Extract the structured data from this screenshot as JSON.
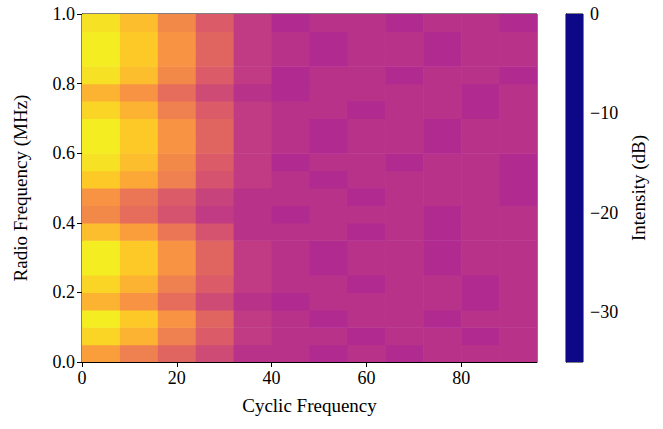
{
  "chart_data": {
    "type": "heatmap",
    "x_label": "Cyclic Frequency",
    "y_label": "Radio Frequency (MHz)",
    "xlim": [
      0,
      96
    ],
    "xticks": [
      0,
      20,
      40,
      60,
      80
    ],
    "ylim": [
      0,
      1
    ],
    "yticks": [
      {
        "value": 0,
        "label": "0.0"
      },
      0.2,
      0.4,
      0.6,
      0.8,
      {
        "value": 1,
        "label": "1.0"
      }
    ],
    "x_edges": [
      0,
      8,
      16,
      24,
      32,
      40,
      48,
      56,
      64,
      72,
      80,
      88,
      96
    ],
    "y_edges": [
      0,
      0.05,
      0.1,
      0.15,
      0.2,
      0.25,
      0.3,
      0.35,
      0.4,
      0.45,
      0.5,
      0.55,
      0.6,
      0.65,
      0.7,
      0.75,
      0.8,
      0.85,
      0.9,
      0.95,
      1
    ],
    "values": [
      [
        -8,
        -11,
        -14,
        -17,
        -20,
        -20,
        -21,
        -20,
        -21,
        -20,
        -20,
        -20
      ],
      [
        -3,
        -6,
        -11,
        -15,
        -19,
        -20,
        -20,
        -21,
        -20,
        -20,
        -21,
        -20
      ],
      [
        -1,
        -4,
        -9,
        -14,
        -19,
        -20,
        -21,
        -20,
        -20,
        -21,
        -20,
        -20
      ],
      [
        -6,
        -9,
        -13,
        -17,
        -20,
        -21,
        -20,
        -20,
        -20,
        -20,
        -21,
        -20
      ],
      [
        -3,
        -6,
        -11,
        -15,
        -19,
        -20,
        -20,
        -21,
        -20,
        -20,
        -21,
        -20
      ],
      [
        -1,
        -4,
        -9,
        -14,
        -19,
        -20,
        -21,
        -20,
        -20,
        -21,
        -20,
        -20
      ],
      [
        -1,
        -4,
        -9,
        -14,
        -19,
        -20,
        -21,
        -20,
        -20,
        -21,
        -20,
        -20
      ],
      [
        -5,
        -8,
        -12,
        -16,
        -20,
        -20,
        -20,
        -21,
        -20,
        -21,
        -20,
        -20
      ],
      [
        -10,
        -13,
        -16,
        -19,
        -20,
        -21,
        -20,
        -20,
        -20,
        -21,
        -20,
        -20
      ],
      [
        -9,
        -12,
        -15,
        -18,
        -20,
        -20,
        -20,
        -21,
        -20,
        -20,
        -20,
        -21
      ],
      [
        -4,
        -7,
        -11,
        -16,
        -19,
        -20,
        -21,
        -20,
        -20,
        -20,
        -20,
        -21
      ],
      [
        -2,
        -5,
        -10,
        -15,
        -19,
        -21,
        -20,
        -20,
        -21,
        -20,
        -20,
        -21
      ],
      [
        -1,
        -4,
        -9,
        -14,
        -19,
        -20,
        -21,
        -20,
        -20,
        -21,
        -20,
        -20
      ],
      [
        -1,
        -4,
        -9,
        -14,
        -19,
        -20,
        -21,
        -20,
        -20,
        -21,
        -20,
        -20
      ],
      [
        -3,
        -6,
        -11,
        -15,
        -19,
        -20,
        -20,
        -21,
        -20,
        -20,
        -21,
        -20
      ],
      [
        -6,
        -9,
        -13,
        -17,
        -20,
        -21,
        -20,
        -20,
        -20,
        -20,
        -21,
        -20
      ],
      [
        -2,
        -5,
        -10,
        -15,
        -19,
        -21,
        -20,
        -20,
        -21,
        -20,
        -20,
        -21
      ],
      [
        -1,
        -4,
        -9,
        -14,
        -19,
        -20,
        -21,
        -20,
        -20,
        -21,
        -20,
        -20
      ],
      [
        -1,
        -4,
        -9,
        -14,
        -19,
        -20,
        -21,
        -20,
        -20,
        -21,
        -20,
        -20
      ],
      [
        -2,
        -5,
        -10,
        -15,
        -19,
        -21,
        -20,
        -20,
        -21,
        -20,
        -20,
        -21
      ]
    ],
    "colorbar": {
      "label": "Intensity (dB)",
      "range": [
        -35,
        0
      ],
      "ticks": [
        {
          "value": 0,
          "label": "0"
        },
        {
          "value": -10,
          "label": "−10"
        },
        {
          "value": -20,
          "label": "−20"
        },
        {
          "value": -30,
          "label": "−30"
        }
      ]
    }
  }
}
